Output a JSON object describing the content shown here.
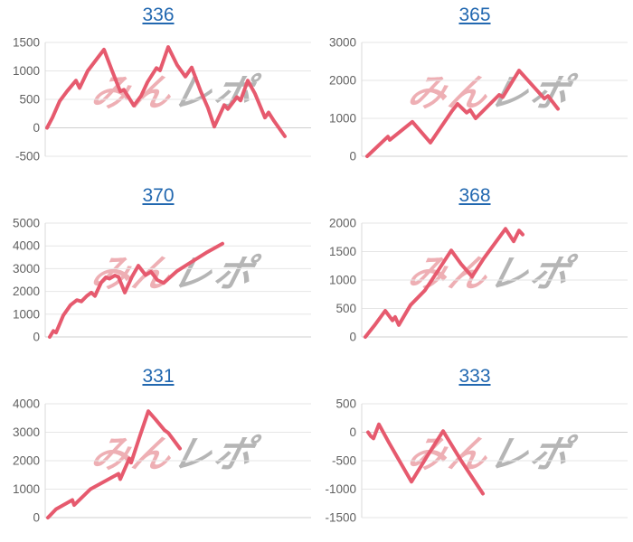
{
  "watermark": {
    "pink": "みん",
    "gray": "レポ"
  },
  "colors": {
    "line": "#e65a6e",
    "grid": "#e6e6e6",
    "baseline": "#cfcfcf",
    "axis": "#d9d9d9",
    "tick_label": "#616161",
    "title_link": "#2268b0"
  },
  "chart_data": [
    {
      "type": "line",
      "title": "336",
      "ylim": [
        -500,
        1500
      ],
      "yticks": [
        1500,
        1000,
        500,
        0,
        -500
      ],
      "grid": true,
      "legend": "none",
      "points_note": "x = px across 350px cell, y = value",
      "points": [
        [
          52,
          0
        ],
        [
          58,
          180
        ],
        [
          66,
          470
        ],
        [
          74,
          640
        ],
        [
          84,
          830
        ],
        [
          88,
          700
        ],
        [
          97,
          1000
        ],
        [
          108,
          1230
        ],
        [
          115,
          1375
        ],
        [
          124,
          1000
        ],
        [
          133,
          640
        ],
        [
          137,
          670
        ],
        [
          148,
          390
        ],
        [
          156,
          560
        ],
        [
          163,
          800
        ],
        [
          173,
          1050
        ],
        [
          177,
          1010
        ],
        [
          186,
          1420
        ],
        [
          196,
          1100
        ],
        [
          205,
          900
        ],
        [
          212,
          1060
        ],
        [
          222,
          640
        ],
        [
          230,
          350
        ],
        [
          237,
          20
        ],
        [
          248,
          400
        ],
        [
          252,
          330
        ],
        [
          262,
          540
        ],
        [
          266,
          480
        ],
        [
          274,
          830
        ],
        [
          282,
          600
        ],
        [
          293,
          180
        ],
        [
          297,
          270
        ],
        [
          303,
          120
        ],
        [
          315,
          -150
        ]
      ]
    },
    {
      "type": "line",
      "title": "365",
      "ylim": [
        0,
        3000
      ],
      "yticks": [
        3000,
        2000,
        1000,
        0
      ],
      "grid": true,
      "legend": "none",
      "points": [
        [
          56,
          0
        ],
        [
          79,
          520
        ],
        [
          81,
          430
        ],
        [
          106,
          910
        ],
        [
          126,
          360
        ],
        [
          150,
          1200
        ],
        [
          156,
          1380
        ],
        [
          166,
          1150
        ],
        [
          170,
          1220
        ],
        [
          176,
          1000
        ],
        [
          202,
          1620
        ],
        [
          206,
          1560
        ],
        [
          224,
          2260
        ],
        [
          252,
          1520
        ],
        [
          256,
          1590
        ],
        [
          267,
          1250
        ]
      ]
    },
    {
      "type": "line",
      "title": "370",
      "ylim": [
        0,
        5000
      ],
      "yticks": [
        5000,
        4000,
        3000,
        2000,
        1000,
        0
      ],
      "grid": true,
      "legend": "none",
      "points": [
        [
          55,
          0
        ],
        [
          59,
          260
        ],
        [
          62,
          190
        ],
        [
          70,
          950
        ],
        [
          78,
          1400
        ],
        [
          85,
          1620
        ],
        [
          90,
          1560
        ],
        [
          96,
          1800
        ],
        [
          101,
          1950
        ],
        [
          105,
          1800
        ],
        [
          112,
          2400
        ],
        [
          117,
          2620
        ],
        [
          121,
          2560
        ],
        [
          127,
          2700
        ],
        [
          131,
          2640
        ],
        [
          138,
          1950
        ],
        [
          146,
          2650
        ],
        [
          153,
          3130
        ],
        [
          161,
          2720
        ],
        [
          167,
          2860
        ],
        [
          174,
          2500
        ],
        [
          181,
          2370
        ],
        [
          196,
          2900
        ],
        [
          212,
          3300
        ],
        [
          228,
          3700
        ],
        [
          246,
          4100
        ]
      ]
    },
    {
      "type": "line",
      "title": "368",
      "ylim": [
        0,
        2000
      ],
      "yticks": [
        2000,
        1500,
        1000,
        500,
        0
      ],
      "grid": true,
      "legend": "none",
      "points": [
        [
          54,
          0
        ],
        [
          64,
          200
        ],
        [
          76,
          460
        ],
        [
          84,
          290
        ],
        [
          87,
          350
        ],
        [
          91,
          210
        ],
        [
          104,
          560
        ],
        [
          120,
          820
        ],
        [
          135,
          1180
        ],
        [
          149,
          1520
        ],
        [
          160,
          1280
        ],
        [
          172,
          1060
        ],
        [
          185,
          1380
        ],
        [
          197,
          1640
        ],
        [
          209,
          1900
        ],
        [
          218,
          1680
        ],
        [
          224,
          1870
        ],
        [
          228,
          1800
        ]
      ]
    },
    {
      "type": "line",
      "title": "331",
      "ylim": [
        0,
        4000
      ],
      "yticks": [
        4000,
        3000,
        2000,
        1000,
        0
      ],
      "grid": true,
      "legend": "none",
      "points": [
        [
          53,
          0
        ],
        [
          62,
          300
        ],
        [
          80,
          620
        ],
        [
          82,
          440
        ],
        [
          100,
          1000
        ],
        [
          131,
          1540
        ],
        [
          133,
          1350
        ],
        [
          143,
          2080
        ],
        [
          145,
          1930
        ],
        [
          155,
          2900
        ],
        [
          164,
          3740
        ],
        [
          172,
          3450
        ],
        [
          182,
          3070
        ],
        [
          186,
          2980
        ],
        [
          199,
          2430
        ]
      ]
    },
    {
      "type": "line",
      "title": "333",
      "ylim": [
        -1500,
        500
      ],
      "yticks": [
        500,
        0,
        -500,
        -1000,
        -1500
      ],
      "grid": true,
      "legend": "none",
      "points": [
        [
          57,
          0
        ],
        [
          60,
          -70
        ],
        [
          63,
          -110
        ],
        [
          69,
          140
        ],
        [
          80,
          -180
        ],
        [
          105,
          -870
        ],
        [
          122,
          -430
        ],
        [
          140,
          20
        ],
        [
          160,
          -500
        ],
        [
          184,
          -1080
        ]
      ]
    }
  ]
}
